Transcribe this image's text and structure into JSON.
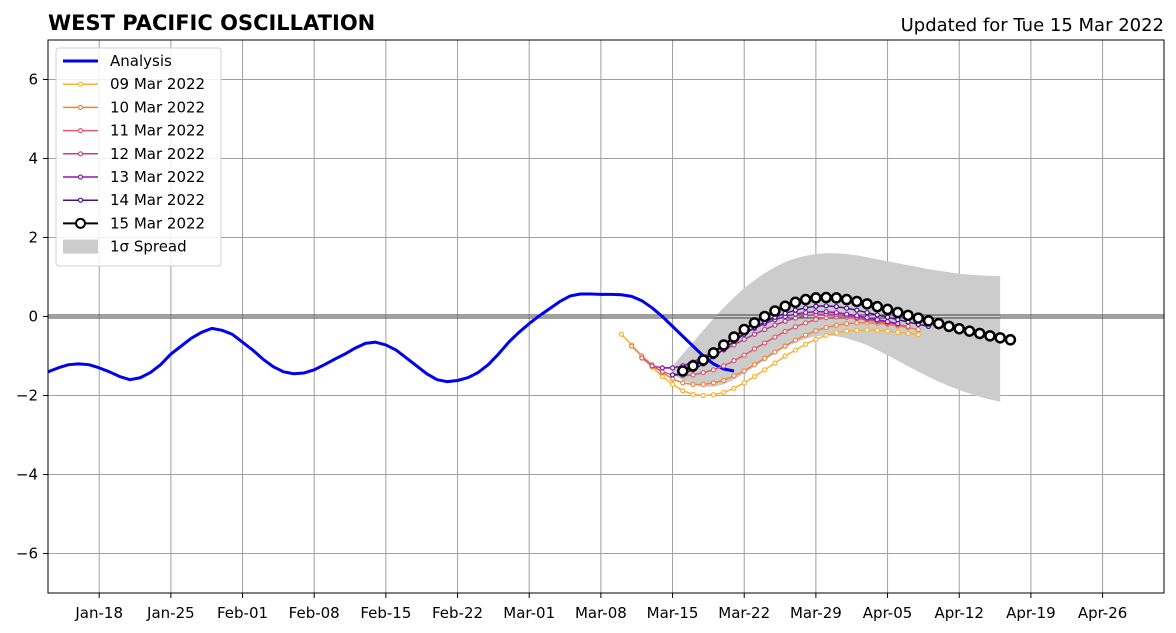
{
  "header": {
    "title": "WEST PACIFIC OSCILLATION",
    "updated": "Updated for Tue 15 Mar 2022"
  },
  "chart_data": {
    "type": "line",
    "title": "WEST PACIFIC OSCILLATION",
    "subtitle": "Updated for Tue 15 Mar 2022",
    "xlabel": "",
    "ylabel": "",
    "x_axis": {
      "type": "date",
      "range": [
        "2022-01-13",
        "2022-05-02"
      ],
      "ticks": [
        {
          "date": "2022-01-18",
          "label": "Jan-18"
        },
        {
          "date": "2022-01-25",
          "label": "Jan-25"
        },
        {
          "date": "2022-02-01",
          "label": "Feb-01"
        },
        {
          "date": "2022-02-08",
          "label": "Feb-08"
        },
        {
          "date": "2022-02-15",
          "label": "Feb-15"
        },
        {
          "date": "2022-02-22",
          "label": "Feb-22"
        },
        {
          "date": "2022-03-01",
          "label": "Mar-01"
        },
        {
          "date": "2022-03-08",
          "label": "Mar-08"
        },
        {
          "date": "2022-03-15",
          "label": "Mar-15"
        },
        {
          "date": "2022-03-22",
          "label": "Mar-22"
        },
        {
          "date": "2022-03-29",
          "label": "Mar-29"
        },
        {
          "date": "2022-04-05",
          "label": "Apr-05"
        },
        {
          "date": "2022-04-12",
          "label": "Apr-12"
        },
        {
          "date": "2022-04-19",
          "label": "Apr-19"
        },
        {
          "date": "2022-04-26",
          "label": "Apr-26"
        }
      ]
    },
    "y_axis": {
      "range": [
        -7,
        7
      ],
      "ticks": [
        {
          "value": -6,
          "label": "−6"
        },
        {
          "value": -4,
          "label": "−4"
        },
        {
          "value": -2,
          "label": "−2"
        },
        {
          "value": 0,
          "label": "0"
        },
        {
          "value": 2,
          "label": "2"
        },
        {
          "value": 4,
          "label": "4"
        },
        {
          "value": 6,
          "label": "6"
        }
      ]
    },
    "grid": true,
    "legend_position": "top-left",
    "analysis": {
      "name": "Analysis",
      "color": "#0000ee",
      "start_date": "2022-01-13",
      "values": [
        -1.4,
        -1.3,
        -1.22,
        -1.2,
        -1.22,
        -1.3,
        -1.4,
        -1.52,
        -1.6,
        -1.55,
        -1.42,
        -1.22,
        -0.95,
        -0.75,
        -0.55,
        -0.4,
        -0.3,
        -0.35,
        -0.45,
        -0.65,
        -0.85,
        -1.08,
        -1.27,
        -1.4,
        -1.45,
        -1.43,
        -1.35,
        -1.22,
        -1.08,
        -0.95,
        -0.8,
        -0.68,
        -0.65,
        -0.72,
        -0.85,
        -1.05,
        -1.25,
        -1.45,
        -1.6,
        -1.65,
        -1.62,
        -1.55,
        -1.42,
        -1.22,
        -0.95,
        -0.65,
        -0.4,
        -0.18,
        0.02,
        0.2,
        0.38,
        0.52,
        0.57,
        0.57,
        0.56,
        0.56,
        0.55,
        0.51,
        0.4,
        0.22,
        0.0,
        -0.25,
        -0.5,
        -0.75,
        -1.0,
        -1.2,
        -1.33,
        -1.38
      ]
    },
    "forecasts": [
      {
        "name": "09 Mar 2022",
        "color": "#f9b233",
        "start_date": "2022-03-10",
        "values": [
          -0.45,
          -0.72,
          -1.0,
          -1.28,
          -1.52,
          -1.72,
          -1.88,
          -1.97,
          -2.0,
          -1.98,
          -1.92,
          -1.82,
          -1.68,
          -1.52,
          -1.35,
          -1.18,
          -1.0,
          -0.85,
          -0.7,
          -0.58,
          -0.48,
          -0.41,
          -0.37,
          -0.35,
          -0.34,
          -0.35,
          -0.37,
          -0.4,
          -0.43,
          -0.46
        ]
      },
      {
        "name": "10 Mar 2022",
        "color": "#ee8442",
        "start_date": "2022-03-11",
        "values": [
          -0.75,
          -1.0,
          -1.22,
          -1.42,
          -1.58,
          -1.68,
          -1.72,
          -1.72,
          -1.68,
          -1.62,
          -1.5,
          -1.38,
          -1.22,
          -1.06,
          -0.9,
          -0.75,
          -0.6,
          -0.47,
          -0.36,
          -0.28,
          -0.22,
          -0.18,
          -0.16,
          -0.16,
          -0.17,
          -0.2,
          -0.24,
          -0.28,
          -0.33
        ]
      },
      {
        "name": "11 Mar 2022",
        "color": "#dd5b6a",
        "start_date": "2022-03-12",
        "values": [
          -1.05,
          -1.25,
          -1.4,
          -1.48,
          -1.5,
          -1.48,
          -1.42,
          -1.35,
          -1.25,
          -1.12,
          -0.98,
          -0.82,
          -0.67,
          -0.52,
          -0.38,
          -0.26,
          -0.16,
          -0.08,
          -0.03,
          -0.01,
          -0.02,
          -0.05,
          -0.09,
          -0.13,
          -0.17,
          -0.21,
          -0.25
        ]
      },
      {
        "name": "12 Mar 2022",
        "color": "#b4448e",
        "start_date": "2022-03-13",
        "values": [
          -1.25,
          -1.3,
          -1.3,
          -1.25,
          -1.18,
          -1.08,
          -0.97,
          -0.85,
          -0.72,
          -0.58,
          -0.45,
          -0.33,
          -0.22,
          -0.12,
          -0.04,
          0.02,
          0.05,
          0.06,
          0.05,
          0.02,
          -0.02,
          -0.06,
          -0.1,
          -0.14,
          -0.18
        ]
      },
      {
        "name": "13 Mar 2022",
        "color": "#8a1ab4",
        "start_date": "2022-03-14",
        "values": [
          -1.3,
          -1.3,
          -1.25,
          -1.15,
          -1.02,
          -0.88,
          -0.72,
          -0.57,
          -0.43,
          -0.3,
          -0.18,
          -0.08,
          0.0,
          0.06,
          0.1,
          0.12,
          0.12,
          0.1,
          0.06,
          0.02,
          -0.03,
          -0.08,
          -0.13,
          -0.18
        ]
      },
      {
        "name": "14 Mar 2022",
        "color": "#4a0d8a",
        "start_date": "2022-03-15",
        "values": [
          -1.48,
          -1.45,
          -1.35,
          -1.2,
          -1.02,
          -0.83,
          -0.63,
          -0.45,
          -0.28,
          -0.14,
          -0.02,
          0.08,
          0.16,
          0.22,
          0.26,
          0.27,
          0.25,
          0.21,
          0.16,
          0.1,
          0.04,
          -0.02,
          -0.08,
          -0.14,
          -0.2,
          -0.25
        ]
      }
    ],
    "latest_forecast": {
      "name": "15 Mar 2022",
      "color": "#000000",
      "marker": "open-circle",
      "start_date": "2022-03-16",
      "values": [
        -1.38,
        -1.25,
        -1.1,
        -0.92,
        -0.72,
        -0.52,
        -0.33,
        -0.16,
        0.0,
        0.14,
        0.26,
        0.36,
        0.43,
        0.47,
        0.48,
        0.47,
        0.43,
        0.38,
        0.32,
        0.25,
        0.18,
        0.1,
        0.03,
        -0.04,
        -0.11,
        -0.18,
        -0.25,
        -0.31,
        -0.37,
        -0.43,
        -0.49,
        -0.54,
        -0.59
      ]
    },
    "spread": {
      "name": "1σ Spread",
      "label_text": "1σ Spread",
      "color": "#cccccc",
      "start_date": "2022-03-15",
      "upper": [
        -1.25,
        -0.95,
        -0.65,
        -0.35,
        -0.05,
        0.22,
        0.48,
        0.72,
        0.92,
        1.1,
        1.25,
        1.38,
        1.47,
        1.54,
        1.58,
        1.6,
        1.6,
        1.58,
        1.55,
        1.5,
        1.45,
        1.4,
        1.35,
        1.3,
        1.25,
        1.2,
        1.16,
        1.12,
        1.08,
        1.06,
        1.04,
        1.03,
        1.02
      ],
      "lower": [
        -1.45,
        -1.62,
        -1.72,
        -1.78,
        -1.78,
        -1.72,
        -1.6,
        -1.44,
        -1.27,
        -1.1,
        -0.93,
        -0.78,
        -0.66,
        -0.56,
        -0.5,
        -0.48,
        -0.5,
        -0.55,
        -0.63,
        -0.73,
        -0.85,
        -0.98,
        -1.12,
        -1.26,
        -1.4,
        -1.53,
        -1.65,
        -1.76,
        -1.86,
        -1.95,
        -2.03,
        -2.1,
        -2.16
      ]
    }
  }
}
